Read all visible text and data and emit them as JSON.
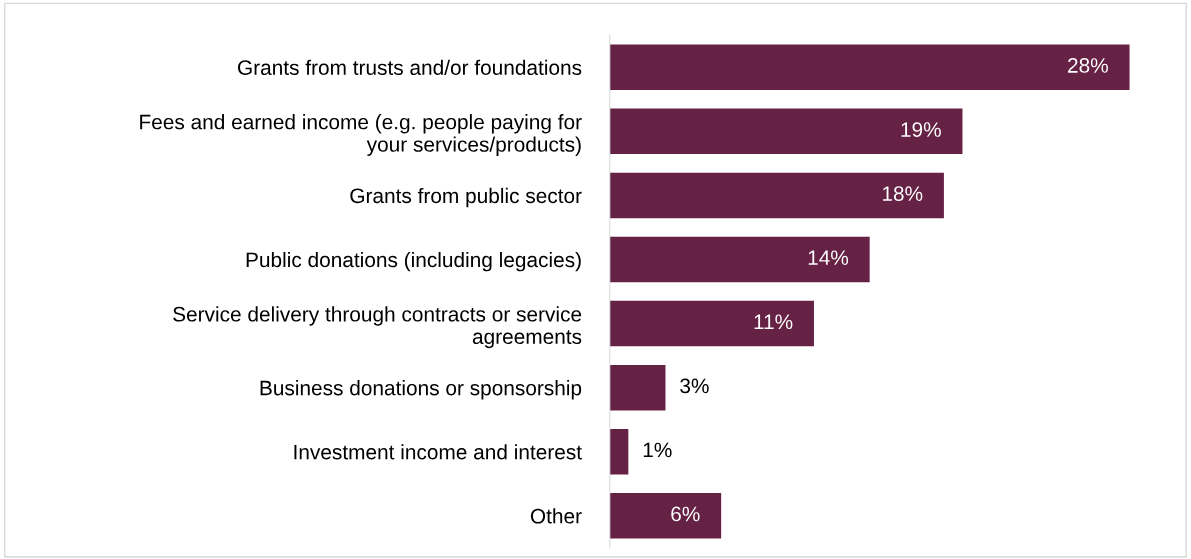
{
  "chart_data": {
    "type": "bar",
    "orientation": "horizontal",
    "categories": [
      "Grants from trusts and/or foundations",
      "Fees and earned income (e.g. people paying for\nyour services/products)",
      "Grants from public sector",
      "Public donations (including legacies)",
      "Service delivery through contracts or service\nagreements",
      "Business donations or sponsorship",
      "Investment income and interest",
      "Other"
    ],
    "values": [
      28,
      19,
      18,
      14,
      11,
      3,
      1,
      6
    ],
    "value_labels": [
      "28%",
      "19%",
      "18%",
      "14%",
      "11%",
      "3%",
      "1%",
      "6%"
    ],
    "color": "#662244",
    "grid": false,
    "legend": false
  }
}
